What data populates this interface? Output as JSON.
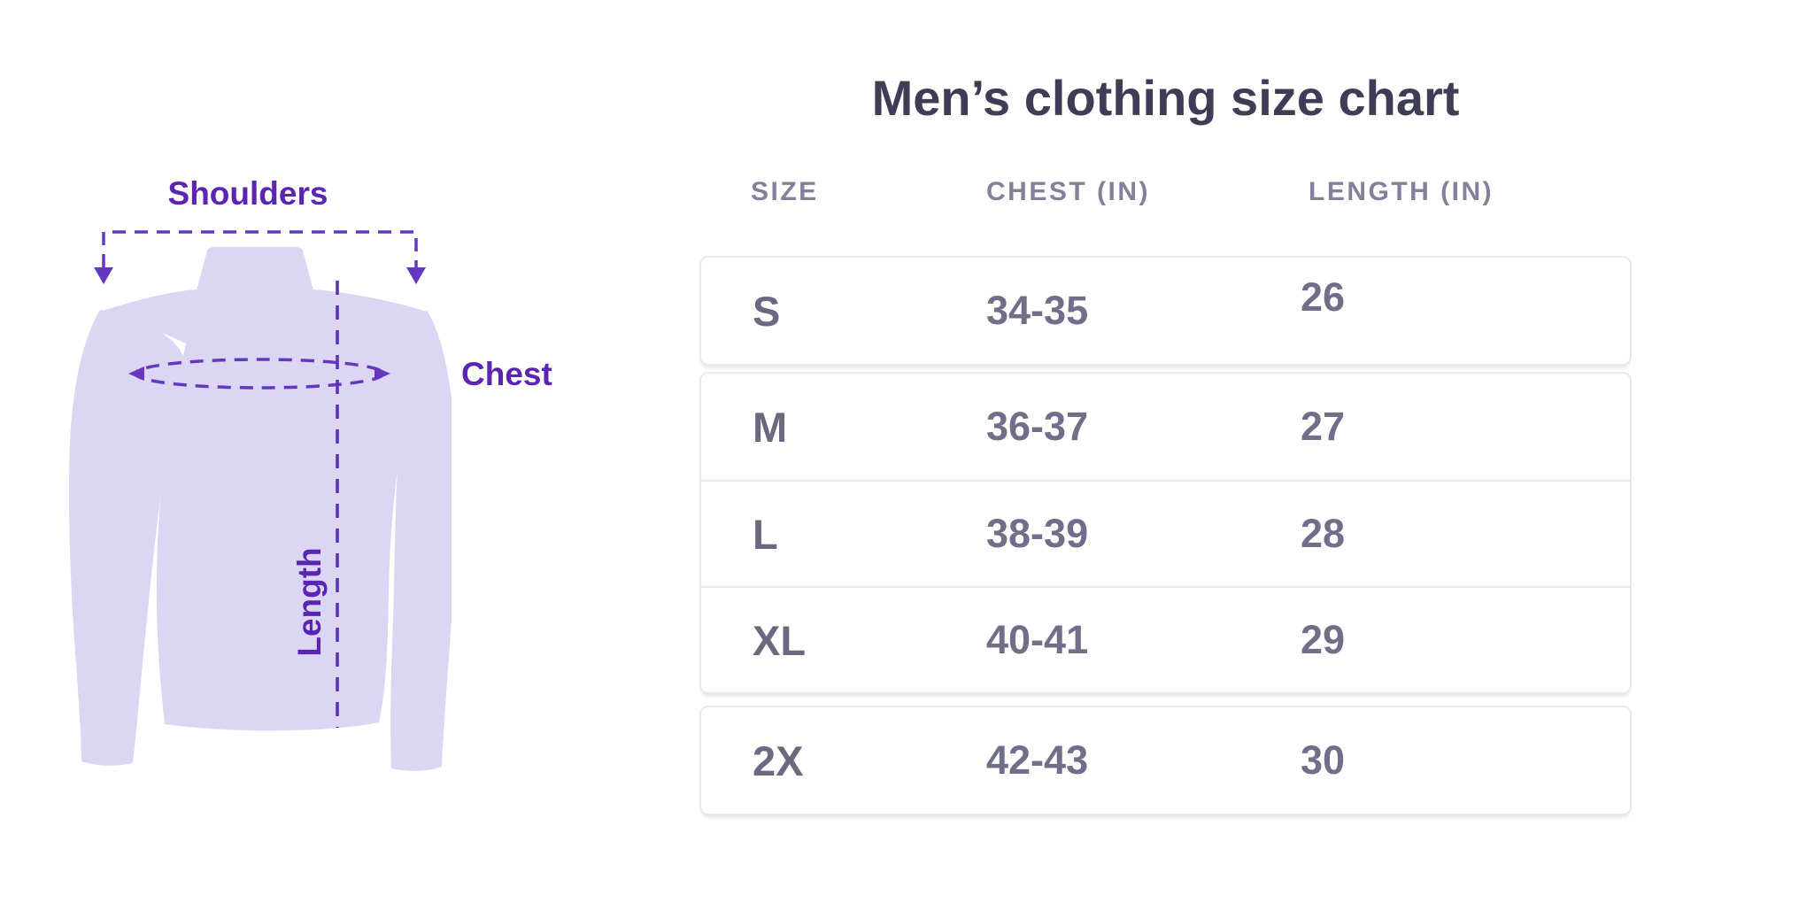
{
  "chart": {
    "title": "Men’s clothing size chart",
    "columns": [
      "SIZE",
      "CHEST (in)",
      "LENGTH (in)"
    ],
    "rows": [
      {
        "size": "S",
        "chest": "34-35",
        "length": "26"
      },
      {
        "size": "M",
        "chest": "36-37",
        "length": "27"
      },
      {
        "size": "L",
        "chest": "38-39",
        "length": "28"
      },
      {
        "size": "XL",
        "chest": "40-41",
        "length": "29"
      },
      {
        "size": "2X",
        "chest": "42-43",
        "length": "30"
      }
    ]
  },
  "chart_data": {
    "type": "table",
    "title": "Men’s clothing size chart",
    "columns": [
      "SIZE",
      "CHEST (in)",
      "LENGTH (in)"
    ],
    "rows": [
      [
        "S",
        "34-35",
        "26"
      ],
      [
        "M",
        "36-37",
        "27"
      ],
      [
        "L",
        "38-39",
        "28"
      ],
      [
        "XL",
        "40-41",
        "29"
      ],
      [
        "2X",
        "42-43",
        "30"
      ]
    ]
  },
  "diagram": {
    "labels": {
      "shoulders": "Shoulders",
      "chest": "Chest",
      "length": "Length"
    }
  },
  "colors": {
    "title_text": "#3f3d56",
    "header_text": "#83809b",
    "size_text": "#6b6880",
    "value_text": "#716e8a",
    "card_border": "#e9e8ed",
    "accent_purple": "#5c24b2",
    "dash_purple": "#6636c0",
    "shirt_fill": "#dbd6f4"
  }
}
